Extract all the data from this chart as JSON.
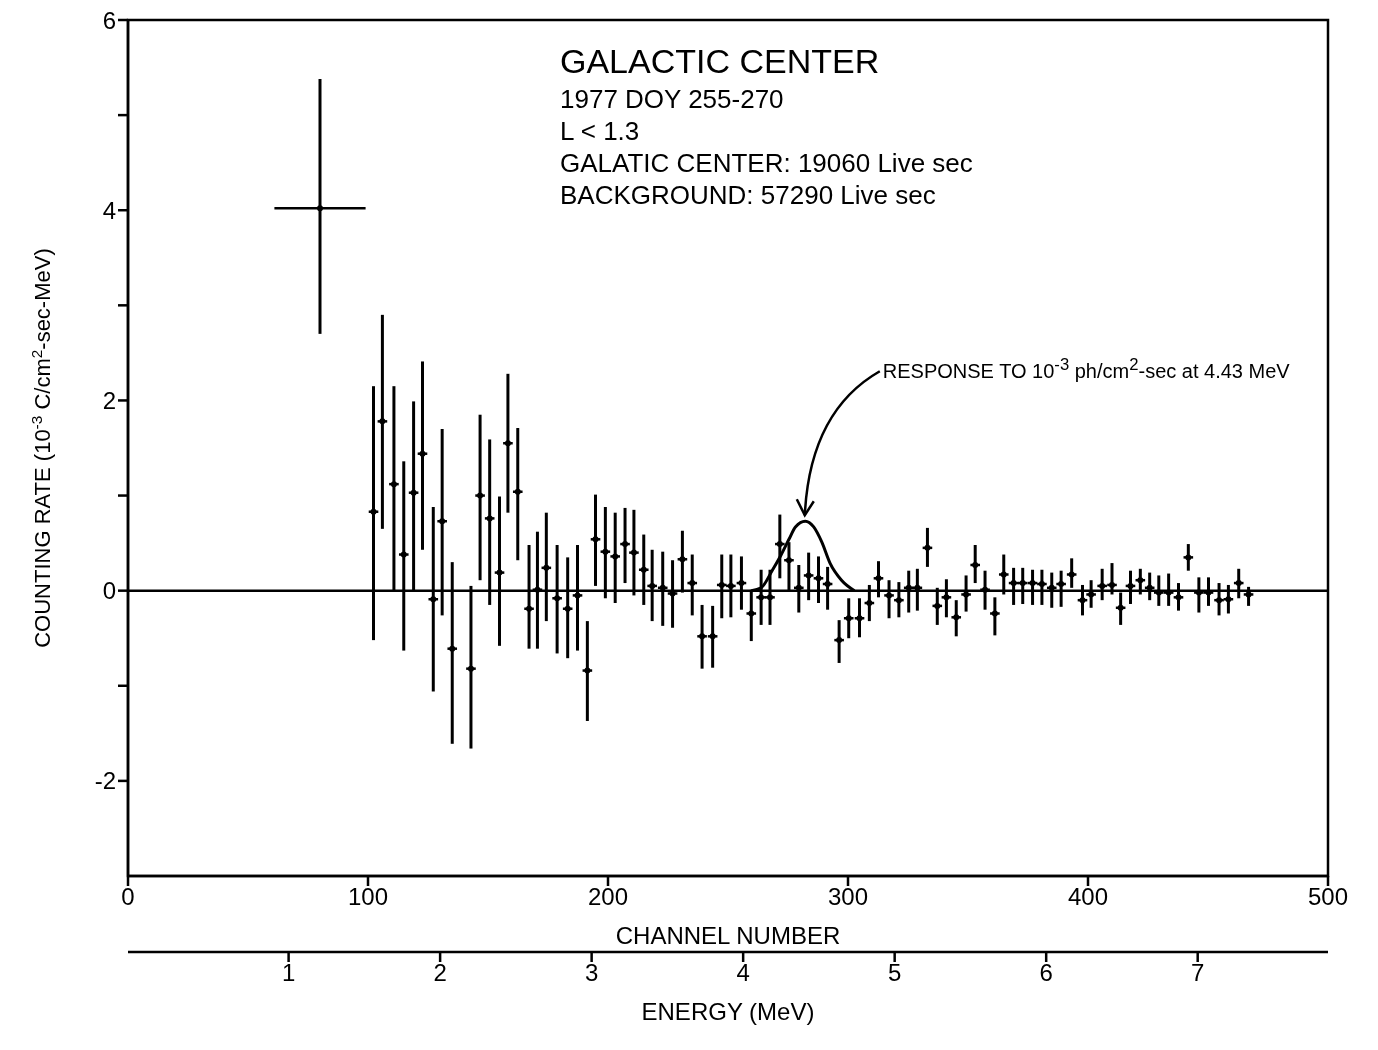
{
  "chart_data": {
    "type": "scatter",
    "title": "GALACTIC CENTER",
    "annotations": [
      "1977  DOY  255-270",
      "L < 1.3",
      "GALATIC CENTER: 19060 Live sec",
      "BACKGROUND: 57290 Live sec",
      {
        "text": "RESPONSE TO 10$^{-3}$ ph/cm$^{2}$-sec at 4.43 MeV",
        "x": 282,
        "y": 0.73
      }
    ],
    "xlabel": "CHANNEL NUMBER",
    "ylabel": "COUNTING RATE (10$^{-3}$ C/cm$^{2}$-sec-MeV)",
    "x2label": "ENERGY (MeV)",
    "xlim": [
      0,
      500
    ],
    "xticks": [
      0,
      100,
      200,
      300,
      400,
      500
    ],
    "ylim": [
      -3,
      6
    ],
    "yticks": [
      -2,
      {
        "value": -1,
        "label": null
      },
      0,
      {
        "value": 1,
        "label": null
      },
      2,
      {
        "value": 3,
        "label": null
      },
      4,
      {
        "value": 5,
        "label": null
      },
      6
    ],
    "x2lim": [
      -0.06,
      7.86
    ],
    "x2ticks": [
      1,
      2,
      3,
      4,
      5,
      6,
      7
    ],
    "marker": "circle",
    "grid": false,
    "legend": false,
    "ref_lines": [
      {
        "axis": "y",
        "value": 0,
        "color": "#000000",
        "line_style": "solid"
      }
    ],
    "series": [
      {
        "color": "#000000",
        "x": [
          102.3,
          106.0,
          110.8,
          114.9,
          119.0,
          122.7,
          127.2,
          130.9,
          135.1,
          142.9,
          146.7,
          150.7,
          154.8,
          158.3,
          162.4,
          167.1,
          170.6,
          174.3,
          178.8,
          183.2,
          187.3,
          191.4,
          194.8,
          198.9,
          203.0,
          207.1,
          210.8,
          214.9,
          218.4,
          222.8,
          226.9,
          231.0,
          235.1,
          239.2,
          243.6,
          247.4,
          251.2,
          255.6,
          259.7,
          263.8,
          267.5,
          271.6,
          275.4,
          279.5,
          283.6,
          287.7,
          291.5,
          296.3,
          300.3,
          304.8,
          308.9,
          312.7,
          317.1,
          321.2,
          325.3,
          328.9,
          333.1,
          337.2,
          341.0,
          345.1,
          349.2,
          353.0,
          357.1,
          361.2,
          364.9,
          369.0,
          372.8,
          376.9,
          380.8,
          384.9,
          388.8,
          393.2,
          397.7,
          401.3,
          405.9,
          410.0,
          413.6,
          417.7,
          421.8,
          425.7,
          429.5,
          433.6,
          437.7,
          441.8,
          446.2,
          450.2,
          454.6,
          458.5,
          462.8,
          466.9
        ],
        "values": [
          0.83,
          1.78,
          1.12,
          0.38,
          1.03,
          1.44,
          -0.09,
          0.73,
          -0.61,
          -0.82,
          1.0,
          0.76,
          0.19,
          1.55,
          1.04,
          -0.19,
          0.01,
          0.24,
          -0.08,
          -0.19,
          -0.05,
          -0.84,
          0.54,
          0.41,
          0.36,
          0.49,
          0.4,
          0.22,
          0.05,
          0.03,
          -0.03,
          0.33,
          0.08,
          -0.48,
          -0.48,
          0.06,
          0.05,
          0.08,
          -0.24,
          -0.07,
          -0.07,
          0.49,
          0.32,
          0.03,
          0.16,
          0.13,
          0.07,
          -0.52,
          -0.29,
          -0.29,
          -0.13,
          0.13,
          -0.05,
          -0.1,
          0.03,
          0.03,
          0.45,
          -0.16,
          -0.07,
          -0.28,
          -0.04,
          0.27,
          0.01,
          -0.24,
          0.17,
          0.08,
          0.08,
          0.08,
          0.07,
          0.03,
          0.07,
          0.17,
          -0.1,
          -0.04,
          0.05,
          0.06,
          -0.18,
          0.05,
          0.11,
          0.03,
          -0.02,
          -0.02,
          -0.07,
          0.35,
          -0.02,
          -0.02,
          -0.1,
          -0.09,
          0.08,
          -0.04
        ],
        "errors": [
          [
            -0.52,
            2.15
          ],
          [
            0.65,
            2.9
          ],
          [
            0.0,
            2.15
          ],
          [
            -0.63,
            1.36
          ],
          [
            0.0,
            1.99
          ],
          [
            0.43,
            2.41
          ],
          [
            -1.06,
            0.88
          ],
          [
            -0.26,
            1.7
          ],
          [
            -1.61,
            0.3
          ],
          [
            -1.66,
            0.05
          ],
          [
            0.11,
            1.85
          ],
          [
            -0.15,
            1.59
          ],
          [
            -0.58,
            0.99
          ],
          [
            0.82,
            2.28
          ],
          [
            0.32,
            1.71
          ],
          [
            -0.61,
            0.48
          ],
          [
            -0.61,
            0.62
          ],
          [
            -0.32,
            0.82
          ],
          [
            -0.66,
            0.48
          ],
          [
            -0.71,
            0.35
          ],
          [
            -0.63,
            0.48
          ],
          [
            -1.37,
            -0.32
          ],
          [
            0.05,
            1.01
          ],
          [
            -0.08,
            0.88
          ],
          [
            -0.13,
            0.82
          ],
          [
            0.08,
            0.87
          ],
          [
            -0.05,
            0.85
          ],
          [
            -0.15,
            0.59
          ],
          [
            -0.32,
            0.43
          ],
          [
            -0.37,
            0.41
          ],
          [
            -0.39,
            0.32
          ],
          [
            -0.02,
            0.63
          ],
          [
            -0.26,
            0.38
          ],
          [
            -0.82,
            -0.15
          ],
          [
            -0.81,
            -0.16
          ],
          [
            -0.29,
            0.38
          ],
          [
            -0.28,
            0.38
          ],
          [
            -0.2,
            0.36
          ],
          [
            -0.53,
            0.01
          ],
          [
            -0.36,
            0.22
          ],
          [
            -0.36,
            0.22
          ],
          [
            0.13,
            0.8
          ],
          [
            0.0,
            0.51
          ],
          [
            -0.23,
            0.27
          ],
          [
            -0.1,
            0.4
          ],
          [
            -0.13,
            0.36
          ],
          [
            -0.2,
            0.25
          ],
          [
            -0.76,
            -0.31
          ],
          [
            -0.5,
            -0.08
          ],
          [
            -0.49,
            -0.08
          ],
          [
            -0.32,
            0.06
          ],
          [
            -0.07,
            0.31
          ],
          [
            -0.29,
            0.11
          ],
          [
            -0.28,
            0.09
          ],
          [
            -0.23,
            0.21
          ],
          [
            -0.21,
            0.23
          ],
          [
            0.25,
            0.66
          ],
          [
            -0.36,
            0.03
          ],
          [
            -0.28,
            0.12
          ],
          [
            -0.48,
            -0.1
          ],
          [
            -0.22,
            0.16
          ],
          [
            0.08,
            0.48
          ],
          [
            -0.2,
            0.21
          ],
          [
            -0.47,
            -0.07
          ],
          [
            -0.04,
            0.38
          ],
          [
            -0.15,
            0.24
          ],
          [
            -0.14,
            0.24
          ],
          [
            -0.15,
            0.22
          ],
          [
            -0.15,
            0.22
          ],
          [
            -0.18,
            0.19
          ],
          [
            -0.17,
            0.21
          ],
          [
            0.03,
            0.34
          ],
          [
            -0.26,
            0.06
          ],
          [
            -0.18,
            0.11
          ],
          [
            -0.1,
            0.23
          ],
          [
            -0.04,
            0.29
          ],
          [
            -0.36,
            -0.02
          ],
          [
            -0.14,
            0.21
          ],
          [
            -0.04,
            0.23
          ],
          [
            -0.1,
            0.19
          ],
          [
            -0.16,
            0.16
          ],
          [
            -0.16,
            0.18
          ],
          [
            -0.21,
            0.08
          ],
          [
            0.21,
            0.49
          ],
          [
            -0.23,
            0.14
          ],
          [
            -0.16,
            0.14
          ],
          [
            -0.26,
            0.08
          ],
          [
            -0.24,
            0.06
          ],
          [
            -0.08,
            0.23
          ],
          [
            -0.16,
            0.04
          ]
        ],
        "xerrors": [
          2,
          2,
          2,
          2,
          2,
          2,
          2,
          2,
          2,
          2,
          2,
          2,
          2,
          2,
          2,
          2,
          2,
          2,
          2,
          2,
          2,
          2,
          2,
          2,
          2,
          2,
          2,
          2,
          2,
          2,
          2,
          2,
          2,
          2,
          2,
          2,
          2,
          2,
          2,
          2,
          2,
          2,
          2,
          2,
          2,
          2,
          2,
          2,
          2,
          2,
          2,
          2,
          2,
          2,
          2,
          2,
          2,
          2,
          2,
          2,
          2,
          2,
          2,
          2,
          2,
          2,
          2,
          2,
          2,
          2,
          2,
          2,
          2,
          2,
          2,
          2,
          2,
          2,
          2,
          2,
          2,
          2,
          2,
          2,
          2,
          2,
          2,
          2,
          2,
          2
        ]
      },
      {
        "color": "#000000",
        "x": [
          80
        ],
        "values": [
          4.02
        ],
        "errors": [
          [
            2.7,
            5.38
          ]
        ],
        "xerrors": [
          19
        ]
      },
      {
        "type": "line",
        "color": "#000000",
        "marker": "none",
        "x": [
          259.7,
          263.8,
          268.6,
          272.0,
          275.4,
          278.1,
          282.2,
          285.7,
          289.1,
          292.5,
          297.3,
          302.7
        ],
        "values": [
          0,
          0.03,
          0.22,
          0.37,
          0.54,
          0.67,
          0.73,
          0.67,
          0.51,
          0.29,
          0.11,
          0
        ]
      }
    ]
  }
}
